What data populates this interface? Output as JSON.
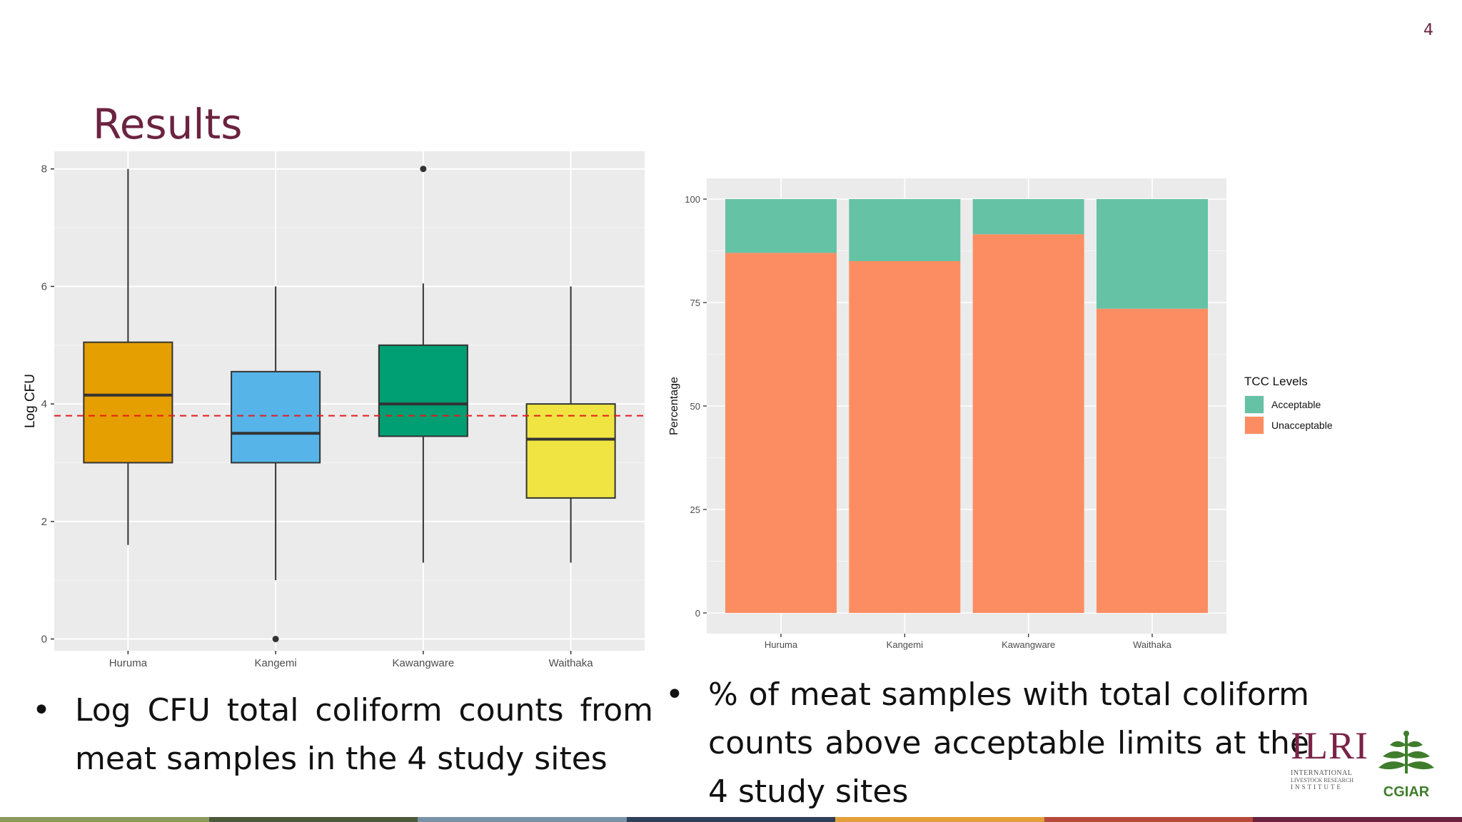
{
  "page": {
    "number": "4",
    "title": "Results"
  },
  "chart_data": [
    {
      "type": "boxplot",
      "ylabel": "Log CFU",
      "ylim": [
        -0.2,
        8.3
      ],
      "yticks": [
        0,
        2,
        4,
        6,
        8
      ],
      "categories": [
        "Huruma",
        "Kangemi",
        "Kawangware",
        "Waithaka"
      ],
      "boxes": [
        {
          "category": "Huruma",
          "min": 1.6,
          "q1": 3.0,
          "median": 4.15,
          "q3": 5.05,
          "max": 8.0,
          "outliers": [],
          "color": "#E69F00"
        },
        {
          "category": "Kangemi",
          "min": 1.0,
          "q1": 3.0,
          "median": 3.5,
          "q3": 4.55,
          "max": 6.0,
          "outliers": [
            0.0
          ],
          "color": "#56B4E9"
        },
        {
          "category": "Kawangware",
          "min": 1.3,
          "q1": 3.45,
          "median": 4.0,
          "q3": 5.0,
          "max": 6.05,
          "outliers": [
            8.0
          ],
          "color": "#009E73"
        },
        {
          "category": "Waithaka",
          "min": 1.3,
          "q1": 2.4,
          "median": 3.4,
          "q3": 4.0,
          "max": 6.0,
          "outliers": [],
          "color": "#F0E442"
        }
      ],
      "reference_line": {
        "y": 3.8,
        "color": "#E41A1C",
        "style": "dashed"
      },
      "grid": true,
      "background": "#EBEBEB"
    },
    {
      "type": "stacked_bar",
      "ylabel": "Percentage",
      "ylim": [
        0,
        100
      ],
      "yticks": [
        0,
        25,
        50,
        75,
        100
      ],
      "categories": [
        "Huruma",
        "Kangemi",
        "Kawangware",
        "Waithaka"
      ],
      "series": [
        {
          "name": "Unacceptable",
          "values": [
            87,
            85,
            91.5,
            73.5
          ],
          "color": "#FC8D62"
        },
        {
          "name": "Acceptable",
          "values": [
            13,
            15,
            8.5,
            26.5
          ],
          "color": "#66C2A5"
        }
      ],
      "legend": {
        "title": "TCC Levels",
        "position": "right"
      },
      "grid": true,
      "background": "#EBEBEB"
    }
  ],
  "bullets": [
    "Log CFU total coliform counts from meat samples in the 4 study sites",
    "% of meat samples with total coliform counts above acceptable limits at the 4 study sites"
  ],
  "bullet_symbol": "•",
  "logos": {
    "ilri_title": "ILRI",
    "ilri_line1": "INTERNATIONAL",
    "ilri_line2": "LIVESTOCK RESEARCH",
    "ilri_line3": "INSTITUTE",
    "cgiar": "CGIAR"
  },
  "colors": {
    "brand": "#6b2340",
    "cgiar_green": "#3f7d2c",
    "bottom_bar": [
      "#8a9a5b",
      "#4d5a3a",
      "#7a92a8",
      "#2e3f5a",
      "#e3a03a",
      "#b5493a",
      "#6b2340"
    ]
  }
}
